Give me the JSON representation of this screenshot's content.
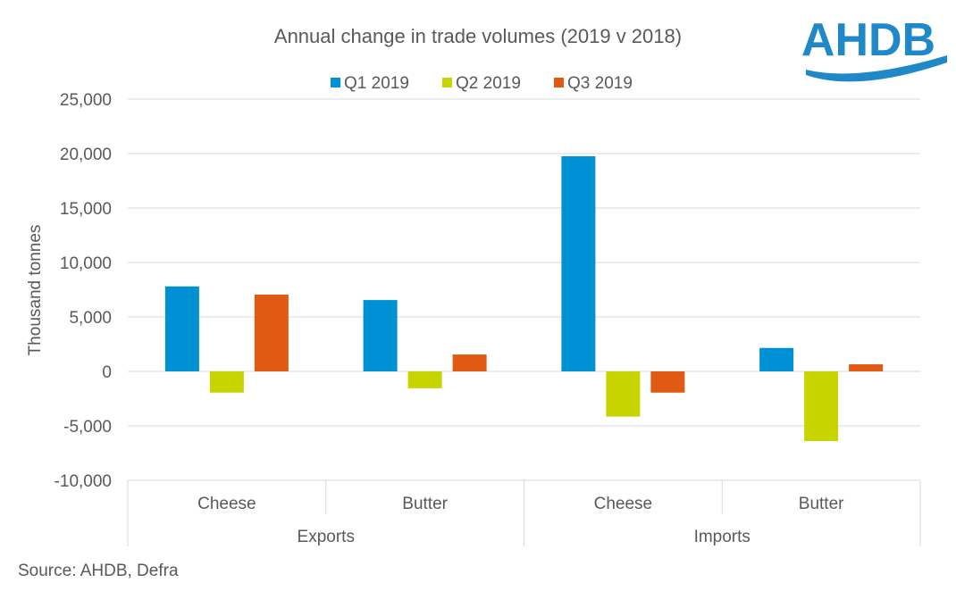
{
  "chart_data": {
    "type": "bar",
    "title": "Annual change in trade volumes (2019 v 2018)",
    "ylabel": "Thousand tonnes",
    "xlabel": "",
    "ylim": [
      -10000,
      25000
    ],
    "yticks": [
      -10000,
      -5000,
      0,
      5000,
      10000,
      15000,
      20000,
      25000
    ],
    "ytick_labels": [
      "-10,000",
      "-5,000",
      "0",
      "5,000",
      "10,000",
      "15,000",
      "20,000",
      "25,000"
    ],
    "grid": true,
    "legend_position": "top",
    "groups": [
      "Exports",
      "Imports"
    ],
    "categories": [
      "Cheese",
      "Butter",
      "Cheese",
      "Butter"
    ],
    "series": [
      {
        "name": "Q1 2019",
        "color": "#0090D4",
        "values": [
          7800,
          6550,
          19750,
          2150
        ]
      },
      {
        "name": "Q2 2019",
        "color": "#C8D400",
        "values": [
          -1950,
          -1550,
          -4150,
          -6400
        ]
      },
      {
        "name": "Q3 2019",
        "color": "#E05A14",
        "values": [
          7050,
          1550,
          -1950,
          650
        ]
      }
    ]
  },
  "source": "Source: AHDB, Defra",
  "logo": {
    "text": "AHDB",
    "color": "#1E88C8"
  }
}
